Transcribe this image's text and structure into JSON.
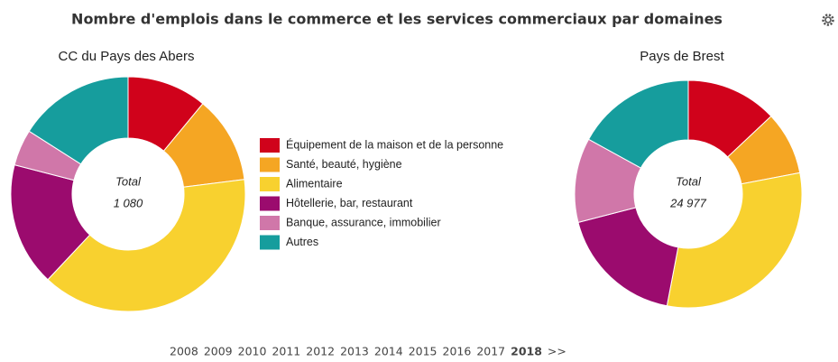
{
  "title": "Nombre d'emplois dans le commerce et les services commerciaux par domaines",
  "chart_data": [
    {
      "type": "donut",
      "title": "CC du Pays des Abers",
      "total_caption": "Total",
      "total": "1 080",
      "categories": [
        "Équipement de la maison et de la personne",
        "Santé, beauté, hygiène",
        "Alimentaire",
        "Hôtellerie, bar, restaurant",
        "Banque, assurance, immobilier",
        "Autres"
      ],
      "colors": [
        "#d0021b",
        "#f5a623",
        "#f8d12f",
        "#9b0b6e",
        "#d077a9",
        "#169d9d"
      ],
      "values": [
        11,
        12,
        39,
        17,
        5,
        16
      ]
    },
    {
      "type": "donut",
      "title": "Pays de Brest",
      "total_caption": "Total",
      "total": "24 977",
      "values": [
        13,
        9,
        31,
        18,
        12,
        17
      ]
    }
  ],
  "years": [
    "2008",
    "2009",
    "2010",
    "2011",
    "2012",
    "2013",
    "2014",
    "2015",
    "2016",
    "2017",
    "2018",
    ">>"
  ],
  "selected_year": "2018"
}
